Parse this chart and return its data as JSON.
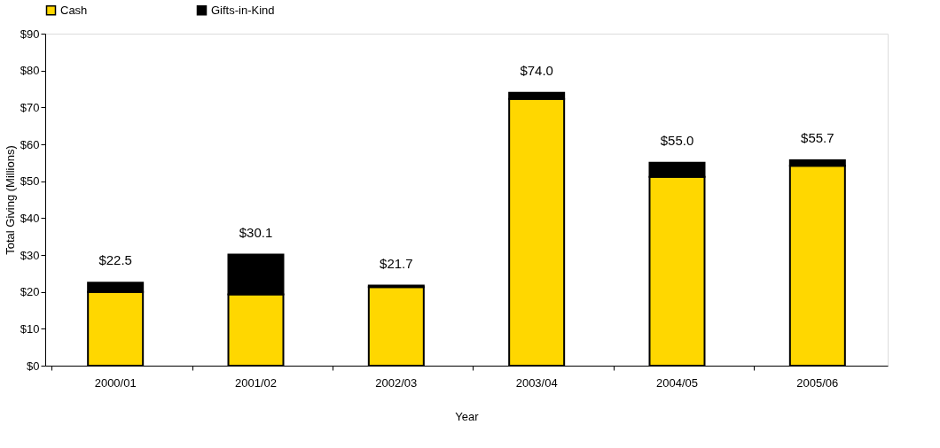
{
  "chart_data": {
    "type": "bar",
    "stacked": true,
    "xlabel": "Year",
    "ylabel": "Total Giving (Millions)",
    "categories": [
      "2000/01",
      "2001/02",
      "2002/03",
      "2003/04",
      "2004/05",
      "2005/06"
    ],
    "series": [
      {
        "name": "Cash",
        "color": "#ffd700",
        "values": [
          20.0,
          19.3,
          21.3,
          72.3,
          51.2,
          54.2
        ]
      },
      {
        "name": "Gifts-in-Kind",
        "color": "#000000",
        "values": [
          2.5,
          10.8,
          0.4,
          1.7,
          3.8,
          1.5
        ]
      }
    ],
    "totals": [
      "$22.5",
      "$30.1",
      "$21.7",
      "$74.0",
      "$55.0",
      "$55.7"
    ],
    "ylim": [
      0,
      90
    ],
    "yticks": [
      {
        "value": 0,
        "label": "$0"
      },
      {
        "value": 10,
        "label": "$10"
      },
      {
        "value": 20,
        "label": "$20"
      },
      {
        "value": 30,
        "label": "$30"
      },
      {
        "value": 40,
        "label": "$40"
      },
      {
        "value": 50,
        "label": "$50"
      },
      {
        "value": 60,
        "label": "$60"
      },
      {
        "value": 70,
        "label": "$70"
      },
      {
        "value": 80,
        "label": "$80"
      },
      {
        "value": 90,
        "label": "$90"
      }
    ],
    "grid": false,
    "legend": "top"
  }
}
